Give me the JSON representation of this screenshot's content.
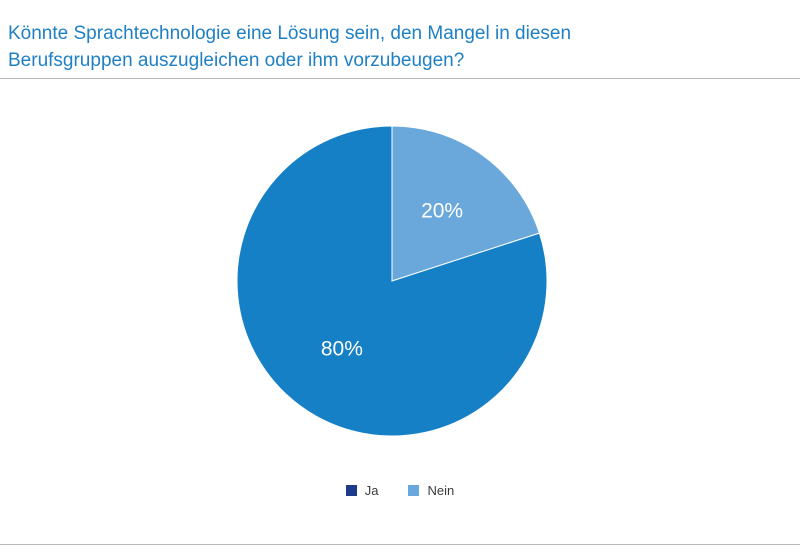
{
  "chart_data": {
    "type": "pie",
    "title_lines": [
      "Könnte Sprachtechnologie eine Lösung sein, den Mangel in diesen",
      "Berufsgruppen auszugleichen oder ihm vorzubeugen?"
    ],
    "slices": [
      {
        "name": "Nein",
        "value": 20,
        "label": "20%",
        "color": "#6aa8dc"
      },
      {
        "name": "Ja",
        "value": 80,
        "label": "80%",
        "color": "#1580c6"
      }
    ],
    "legend": [
      {
        "label": "Ja",
        "color": "#1e3a8c"
      },
      {
        "label": "Nein",
        "color": "#6aa8dc"
      }
    ],
    "legend_placement": "bottom-center"
  }
}
